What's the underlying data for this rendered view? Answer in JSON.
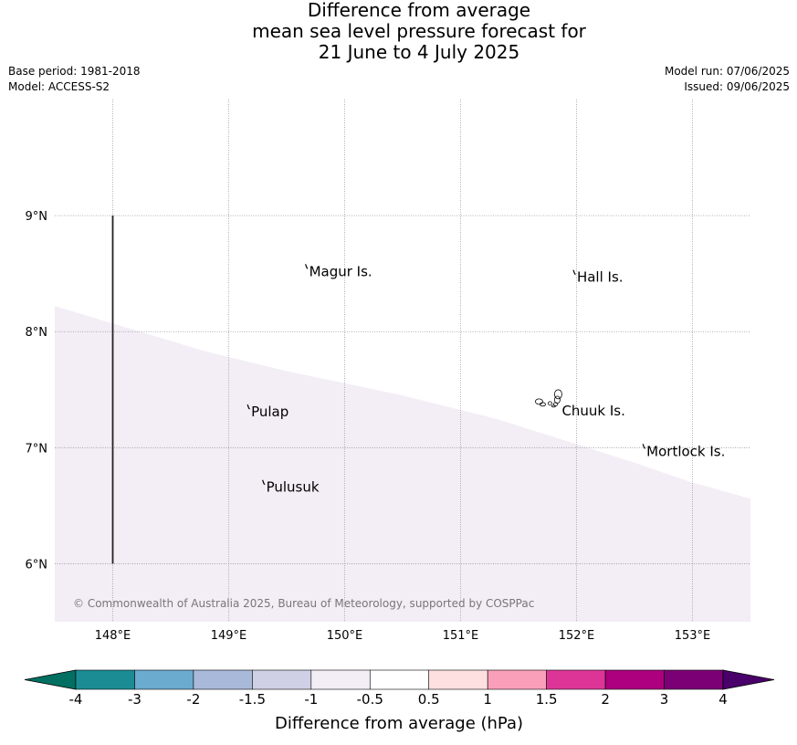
{
  "title": {
    "line1": "Difference from average",
    "line2": "mean sea level pressure forecast for",
    "line3": "21 June to 4 July 2025"
  },
  "meta": {
    "base_period": "Base period: 1981-2018",
    "model": "Model: ACCESS-S2",
    "model_run": "Model run: 07/06/2025",
    "issued": "Issued: 09/06/2025"
  },
  "map": {
    "lon_range": [
      147.5,
      153.5
    ],
    "lat_range": [
      5.5,
      10.0
    ],
    "grid": true,
    "lon_ticks": [
      {
        "value": 148,
        "label": "148°E"
      },
      {
        "value": 149,
        "label": "149°E"
      },
      {
        "value": 150,
        "label": "150°E"
      },
      {
        "value": 151,
        "label": "151°E"
      },
      {
        "value": 152,
        "label": "152°E"
      },
      {
        "value": 153,
        "label": "153°E"
      }
    ],
    "lat_ticks": [
      {
        "value": 9,
        "label": "9°N"
      },
      {
        "value": 8,
        "label": "8°N"
      },
      {
        "value": 7,
        "label": "7°N"
      },
      {
        "value": 6,
        "label": "6°N"
      }
    ],
    "boundary_line": {
      "lon": 148,
      "lat_from": 6,
      "lat_to": 9
    },
    "shaded_region": {
      "category": "-1 to -0.5",
      "color": "#f3edf6",
      "edge": [
        {
          "lon": 147.5,
          "lat": 8.22
        },
        {
          "lon": 148.8,
          "lat": 7.83
        },
        {
          "lon": 149.5,
          "lat": 7.66
        },
        {
          "lon": 150.5,
          "lat": 7.45
        },
        {
          "lon": 151.3,
          "lat": 7.25
        },
        {
          "lon": 152.0,
          "lat": 7.03
        },
        {
          "lon": 152.5,
          "lat": 6.87
        },
        {
          "lon": 153.0,
          "lat": 6.7
        },
        {
          "lon": 153.5,
          "lat": 6.56
        }
      ]
    },
    "places": [
      {
        "name": "Magur Is.",
        "lon": 149.67,
        "lat": 8.55
      },
      {
        "name": "Hall Is.",
        "lon": 151.98,
        "lat": 8.5
      },
      {
        "name": "Pulap",
        "lon": 149.17,
        "lat": 7.34
      },
      {
        "name": "Chuuk Is.",
        "lon": 151.85,
        "lat": 7.35
      },
      {
        "name": "Mortlock Is.",
        "lon": 152.58,
        "lat": 7.0
      },
      {
        "name": "Pulusuk",
        "lon": 149.3,
        "lat": 6.69
      }
    ],
    "copyright": "© Commonwealth of Australia 2025, Bureau of Meteorology, supported by COSPPac"
  },
  "colorbar": {
    "label": "Difference from average (hPa)",
    "ticks": [
      "-4",
      "-3",
      "-2",
      "-1.5",
      "-1",
      "-0.5",
      "0.5",
      "1",
      "1.5",
      "2",
      "3",
      "4"
    ],
    "colors": [
      "#1b8c94",
      "#6aabcf",
      "#a9b9da",
      "#cfd0e5",
      "#f3edf6",
      "#ffffff",
      "#fde0df",
      "#f99fba",
      "#dd3597",
      "#ac007e",
      "#7b0076"
    ],
    "extend_low_color": "#016f62",
    "extend_high_color": "#4a006a"
  }
}
